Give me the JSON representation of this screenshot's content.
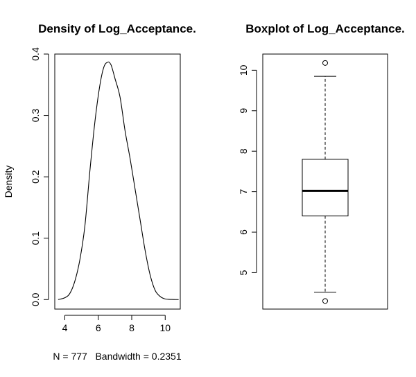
{
  "chart_data": [
    {
      "type": "line",
      "title": "Density of Log_Acceptance.",
      "xlabel": "N = 777   Bandwidth = 0.2351",
      "ylabel": "Density",
      "xlim": [
        3.4,
        10.9
      ],
      "ylim": [
        -0.0155,
        0.4
      ],
      "x_ticks": [
        4,
        6,
        8,
        10
      ],
      "y_ticks": [
        0.0,
        0.1,
        0.2,
        0.3,
        0.4
      ],
      "x_tick_labels": [
        "4",
        "6",
        "8",
        "10"
      ],
      "y_tick_labels": [
        "0.0",
        "0.1",
        "0.2",
        "0.3",
        "0.4"
      ],
      "series": [
        {
          "x": [
            3.6,
            4.0,
            4.3,
            4.6,
            4.9,
            5.2,
            5.5,
            5.8,
            6.1,
            6.35,
            6.6,
            6.75,
            6.85,
            7.0,
            7.3,
            7.6,
            7.9,
            8.2,
            8.5,
            8.8,
            9.1,
            9.4,
            9.7,
            10.0,
            10.4,
            10.8
          ],
          "y": [
            0.0,
            0.003,
            0.01,
            0.03,
            0.065,
            0.12,
            0.21,
            0.29,
            0.35,
            0.38,
            0.387,
            0.383,
            0.375,
            0.36,
            0.33,
            0.275,
            0.23,
            0.18,
            0.13,
            0.08,
            0.04,
            0.015,
            0.005,
            0.001,
            0.0002,
            0.0
          ]
        }
      ],
      "grid": false,
      "legend": "none"
    },
    {
      "type": "boxplot",
      "title": "Boxplot of Log_Acceptance.",
      "ylim": [
        4.1,
        10.4
      ],
      "y_ticks": [
        5,
        6,
        7,
        8,
        9,
        10
      ],
      "y_tick_labels": [
        "5",
        "6",
        "7",
        "8",
        "9",
        "10"
      ],
      "box": {
        "whisker_low": 4.52,
        "q1": 6.4,
        "median": 7.02,
        "q3": 7.8,
        "whisker_high": 9.85,
        "outliers": [
          10.18,
          4.3
        ]
      },
      "grid": false,
      "legend": "none"
    }
  ]
}
